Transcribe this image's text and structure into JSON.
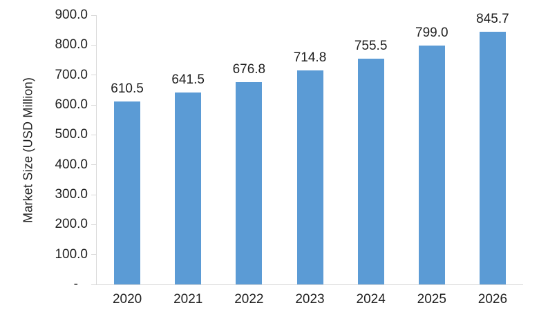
{
  "chart_data": {
    "type": "bar",
    "categories": [
      "2020",
      "2021",
      "2022",
      "2023",
      "2024",
      "2025",
      "2026"
    ],
    "values": [
      610.5,
      641.5,
      676.8,
      714.8,
      755.5,
      799.0,
      845.7
    ],
    "data_labels": [
      "610.5",
      "641.5",
      "676.8",
      "714.8",
      "755.5",
      "799.0",
      "845.7"
    ],
    "title": "",
    "xlabel": "",
    "ylabel": "Market Size (USD Million)",
    "ylim": [
      0,
      900
    ],
    "ytick_step": 100,
    "ytick_labels_bottom_to_top": [
      "-",
      "100.0",
      "200.0",
      "300.0",
      "400.0",
      "500.0",
      "600.0",
      "700.0",
      "800.0",
      "900.0"
    ],
    "grid": false,
    "legend": false,
    "colors": {
      "bar": "#5b9bd5",
      "axis": "#d9d9d9",
      "label": "#1f1f1f"
    }
  }
}
